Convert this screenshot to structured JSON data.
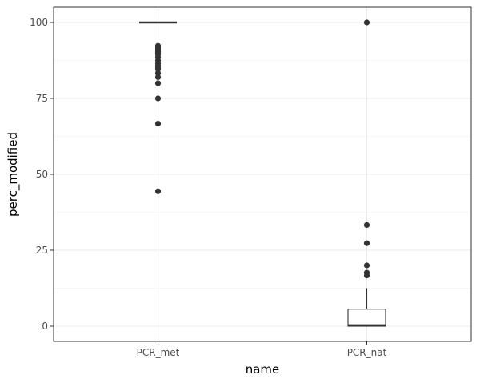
{
  "chart_data": {
    "type": "boxplot",
    "xlabel": "name",
    "ylabel": "perc_modified",
    "categories": [
      "PCR_met",
      "PCR_nat"
    ],
    "ylim": [
      -5,
      105
    ],
    "yticks": [
      0,
      25,
      50,
      75,
      100
    ],
    "yminor": [
      12.5,
      37.5,
      62.5,
      87.5
    ],
    "grid": true,
    "theme": "bw",
    "boxes": [
      {
        "name": "PCR_met",
        "q1": 100,
        "median": 100,
        "q3": 100,
        "whisker_low": 100,
        "whisker_high": 100,
        "outliers": [
          92.3,
          91.7,
          91.0,
          90.5,
          90.0,
          89.5,
          88.5,
          87.5,
          86.5,
          85.7,
          85.0,
          84.6,
          83.3,
          82.0,
          80.0,
          75.0,
          66.7,
          44.4
        ]
      },
      {
        "name": "PCR_nat",
        "q1": 0,
        "median": 0.3,
        "q3": 5.6,
        "whisker_low": 0,
        "whisker_high": 12.5,
        "outliers": [
          100,
          33.3,
          27.3,
          20.0,
          17.6,
          16.7
        ]
      }
    ],
    "colors": {
      "panel_border": "#333333",
      "box": "#333333",
      "point": "#333333",
      "grid": "#ebebeb"
    }
  }
}
